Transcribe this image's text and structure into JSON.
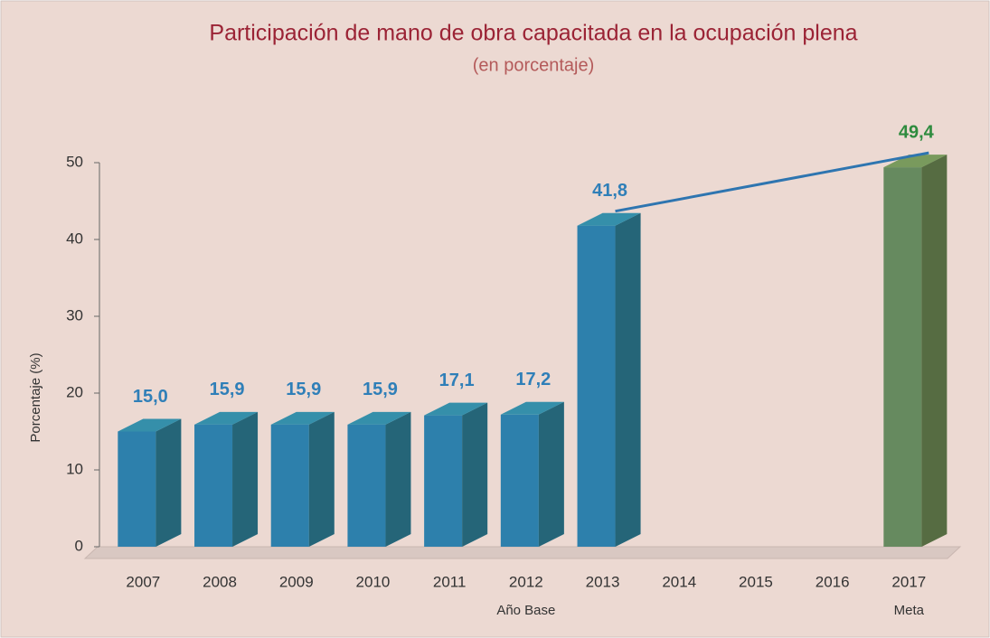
{
  "chart_data": {
    "type": "bar3d",
    "title": "Participación de mano de obra capacitada en la ocupación plena",
    "subtitle": "(en porcentaje)",
    "y_label": "Porcentaje (%)",
    "categories": [
      "2007",
      "2008",
      "2009",
      "2010",
      "2011",
      "2012",
      "2013",
      "2014",
      "2015",
      "2016",
      "2017"
    ],
    "category_notes": [
      null,
      null,
      null,
      null,
      null,
      "Año Base",
      null,
      null,
      null,
      null,
      "Meta"
    ],
    "values": [
      15.0,
      15.9,
      15.9,
      15.9,
      17.1,
      17.2,
      41.8,
      null,
      null,
      null,
      49.4
    ],
    "value_labels": [
      "15,0",
      "15,9",
      "15,9",
      "15,9",
      "17,1",
      "17,2",
      "41,8",
      null,
      null,
      null,
      "49,4"
    ],
    "colors": [
      "#3fa8c8",
      "#3fa8c8",
      "#3fa8c8",
      "#3fa8c8",
      "#3fa8c8",
      "#3fa8c8",
      "#3fa8c8",
      null,
      null,
      null,
      "#8fb56e"
    ],
    "label_colors": [
      "#2f7fb8",
      "#2f7fb8",
      "#2f7fb8",
      "#2f7fb8",
      "#2f7fb8",
      "#2f7fb8",
      "#2f7fb8",
      null,
      null,
      null,
      "#2e8b3e"
    ],
    "line_color": "#2e75b0",
    "ylim": [
      0,
      50
    ],
    "yticks": [
      0,
      10,
      20,
      30,
      40,
      50
    ]
  }
}
